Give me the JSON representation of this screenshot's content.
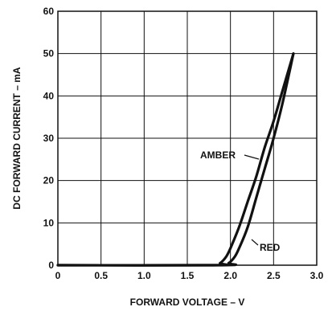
{
  "chart_data": {
    "type": "line",
    "xlabel": "FORWARD VOLTAGE – V",
    "ylabel": "DC FORWARD CURRENT – mA",
    "xlim": [
      0,
      3.0
    ],
    "ylim": [
      0,
      60
    ],
    "x_ticks": [
      "0",
      "0.5",
      "1.0",
      "1.5",
      "2.0",
      "2.5",
      "3.0"
    ],
    "y_ticks": [
      "0",
      "10",
      "20",
      "30",
      "40",
      "50",
      "60"
    ],
    "grid": true,
    "series": [
      {
        "name": "AMBER",
        "x": [
          0,
          1.8,
          1.88,
          1.95,
          2.0,
          2.1,
          2.2,
          2.3,
          2.4,
          2.5,
          2.6,
          2.73
        ],
        "y": [
          0,
          0,
          0.5,
          2,
          4,
          9,
          15,
          21,
          28,
          34,
          41,
          50
        ]
      },
      {
        "name": "RED",
        "x": [
          0,
          1.9,
          1.98,
          2.05,
          2.1,
          2.2,
          2.3,
          2.4,
          2.5,
          2.6,
          2.73
        ],
        "y": [
          0,
          0,
          0.5,
          2,
          4,
          9,
          16,
          23,
          30,
          38,
          50
        ]
      }
    ]
  }
}
